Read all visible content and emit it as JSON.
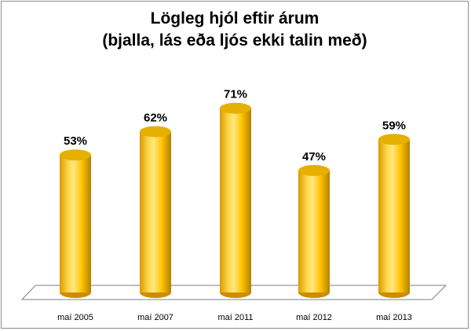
{
  "chart_data": {
    "type": "bar",
    "title_line1": "Lögleg hjól eftir árum",
    "title_line2": "(bjalla, lás eða ljós ekki talin með)",
    "categories": [
      "maí 2005",
      "maí 2007",
      "maí 2011",
      "maí 2012",
      "maí 2013"
    ],
    "values": [
      53,
      62,
      71,
      47,
      59
    ],
    "value_labels": [
      "53%",
      "62%",
      "71%",
      "47%",
      "59%"
    ],
    "ylim": [
      0,
      100
    ],
    "grid": false,
    "legend": "none",
    "bar_style": "3d-cylinder",
    "colors": {
      "bar_light": "#ffe680",
      "bar_mid": "#ffcc00",
      "bar_dark": "#c98f00",
      "bar_top": "#e6b000",
      "floor_line": "#7f7f7f",
      "frame": "#8c8c8c"
    }
  }
}
